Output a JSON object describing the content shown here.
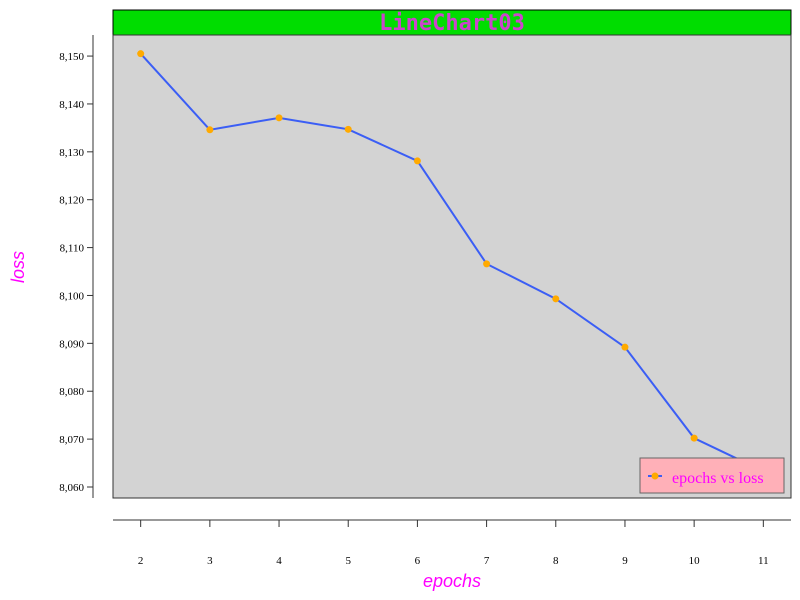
{
  "chart_data": {
    "type": "line",
    "title": "LineChart03",
    "xlabel": "epochs",
    "ylabel": "loss",
    "x": [
      2,
      3,
      4,
      5,
      6,
      7,
      8,
      9,
      10,
      11
    ],
    "series": [
      {
        "name": "epochs vs loss",
        "values": [
          8150.5,
          8134.6,
          8137.1,
          8134.7,
          8128.1,
          8106.6,
          8099.3,
          8089.2,
          8070.2,
          8063.3
        ]
      }
    ],
    "x_ticks": [
      2,
      3,
      4,
      5,
      6,
      7,
      8,
      9,
      10,
      11
    ],
    "y_ticks": [
      8060,
      8070,
      8080,
      8090,
      8100,
      8110,
      8120,
      8130,
      8140,
      8150
    ],
    "y_tick_labels": [
      "8,060",
      "8,070",
      "8,080",
      "8,090",
      "8,100",
      "8,110",
      "8,120",
      "8,130",
      "8,140",
      "8,150"
    ],
    "xlim": [
      1.6,
      11.4
    ],
    "ylim": [
      8057.7,
      8154.4
    ],
    "grid": false,
    "legend_position": "bottom-right",
    "colors": {
      "title_band": "#00dd00",
      "title_text": "#cc44cc",
      "plot_background": "#d3d3d3",
      "line": "#3b5ef5",
      "marker": "#ffaa00",
      "axis_title": "#ff00ff",
      "legend_background": "#ffb0b8",
      "legend_text": "#ff00ff"
    }
  }
}
